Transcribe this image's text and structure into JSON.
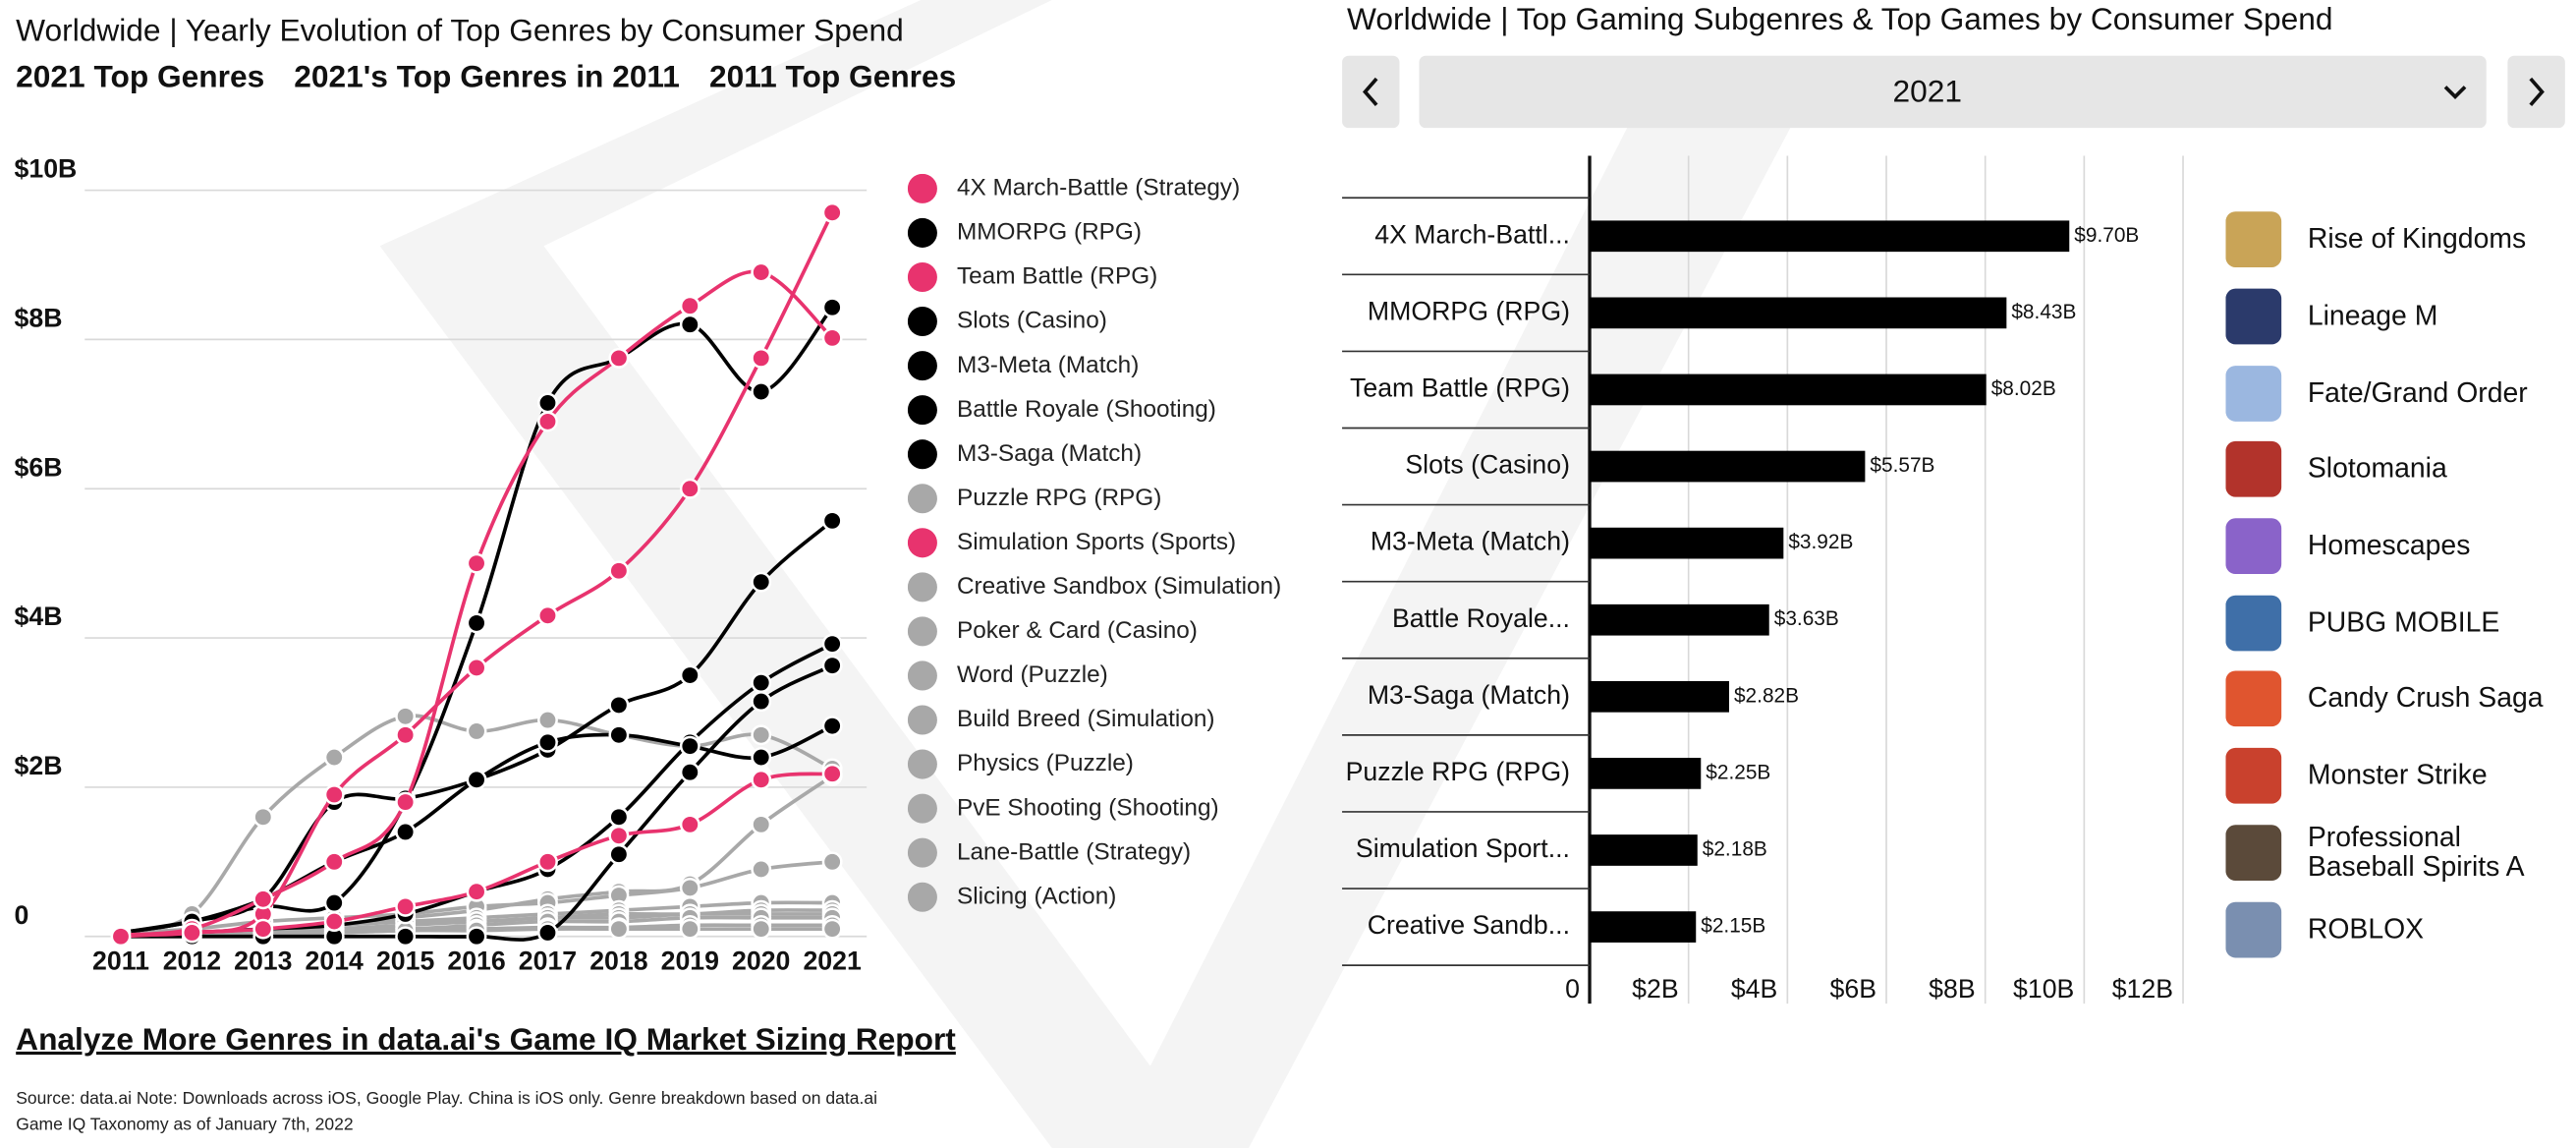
{
  "tabs": [
    "2021 Top Genres",
    "2021's Top Genres in 2011",
    "2011 Top Genres"
  ],
  "tab_colors": [
    "#111111",
    "#e8336e",
    "#a8a8a8"
  ],
  "selector": {
    "value": "2021"
  },
  "top_games": [
    "Rise of Kingdoms",
    "Lineage M",
    "Fate/Grand Order",
    "Slotomania",
    "Homescapes",
    "PUBG MOBILE",
    "Candy Crush Saga",
    "Monster Strike",
    "Professional Baseball Spirits A",
    "ROBLOX"
  ],
  "link": "Analyze More Genres in data.ai's Game IQ Market Sizing Report",
  "source": "Source: data.ai Note: Downloads across iOS, Google Play. China is iOS only. Genre breakdown based on data.ai Game IQ Taxonomy as of January 7th, 2022",
  "chart_data": [
    {
      "type": "line",
      "title": "Worldwide | Yearly Evolution of Top Genres by Consumer Spend",
      "categories": [
        "2011",
        "2012",
        "2013",
        "2014",
        "2015",
        "2016",
        "2017",
        "2018",
        "2019",
        "2020",
        "2021"
      ],
      "ylim": [
        0,
        10
      ],
      "yticks": [
        0,
        {
          "value": 2,
          "label": "$2B"
        },
        {
          "value": 4,
          "label": "$4B"
        },
        {
          "value": 6,
          "label": "$6B"
        },
        {
          "value": 8,
          "label": "$8B"
        },
        {
          "value": 10,
          "label": "$10B"
        }
      ],
      "grid": true,
      "legend": "right",
      "series": [
        {
          "name": "4X March-Battle (Strategy)",
          "color": "#e8336e",
          "values": [
            0.02,
            0.05,
            0.3,
            1.9,
            2.7,
            3.6,
            4.3,
            4.9,
            6.0,
            7.75,
            9.7
          ]
        },
        {
          "name": "MMORPG (RPG)",
          "color": "#000000",
          "values": [
            0.05,
            0.2,
            0.4,
            0.45,
            1.8,
            4.2,
            7.15,
            7.75,
            8.2,
            7.3,
            8.43
          ]
        },
        {
          "name": "Team Battle (RPG)",
          "color": "#e8336e",
          "values": [
            0.02,
            0.1,
            0.5,
            1.0,
            1.8,
            5.0,
            6.9,
            7.75,
            8.45,
            8.9,
            8.02
          ]
        },
        {
          "name": "Slots (Casino)",
          "color": "#000000",
          "values": [
            0.05,
            0.2,
            0.5,
            1.8,
            1.85,
            2.1,
            2.5,
            3.1,
            3.5,
            4.75,
            5.57
          ]
        },
        {
          "name": "M3-Meta (Match)",
          "color": "#000000",
          "values": [
            0.01,
            0.05,
            0.1,
            0.15,
            0.3,
            0.6,
            0.9,
            1.6,
            2.6,
            3.4,
            3.92
          ]
        },
        {
          "name": "Battle Royale (Shooting)",
          "color": "#000000",
          "values": [
            0,
            0,
            0,
            0,
            0,
            0,
            0.05,
            1.1,
            2.2,
            3.15,
            3.63
          ]
        },
        {
          "name": "M3-Saga (Match)",
          "color": "#000000",
          "values": [
            0.05,
            0.2,
            0.5,
            1.0,
            1.4,
            2.1,
            2.6,
            2.7,
            2.55,
            2.4,
            2.82
          ]
        },
        {
          "name": "Puzzle RPG (RPG)",
          "color": "#a8a8a8",
          "values": [
            0.05,
            0.3,
            1.6,
            2.4,
            2.95,
            2.75,
            2.9,
            2.7,
            2.55,
            2.7,
            2.25
          ]
        },
        {
          "name": "Simulation Sports (Sports)",
          "color": "#e8336e",
          "values": [
            0,
            0.05,
            0.1,
            0.2,
            0.4,
            0.6,
            1.0,
            1.35,
            1.5,
            2.1,
            2.18
          ]
        },
        {
          "name": "Creative Sandbox (Simulation)",
          "color": "#a8a8a8",
          "values": [
            0.02,
            0.05,
            0.1,
            0.15,
            0.25,
            0.35,
            0.5,
            0.6,
            0.7,
            1.5,
            2.15
          ]
        },
        {
          "name": "Poker & Card (Casino)",
          "color": "#a8a8a8",
          "values": [
            0.05,
            0.1,
            0.2,
            0.25,
            0.3,
            0.4,
            0.45,
            0.55,
            0.65,
            0.9,
            1.0
          ]
        },
        {
          "name": "Word (Puzzle)",
          "color": "#a8a8a8",
          "values": [
            0.01,
            0.05,
            0.1,
            0.15,
            0.2,
            0.25,
            0.3,
            0.35,
            0.4,
            0.45,
            0.45
          ]
        },
        {
          "name": "Build Breed (Simulation)",
          "color": "#a8a8a8",
          "values": [
            0,
            0.02,
            0.05,
            0.1,
            0.15,
            0.2,
            0.25,
            0.3,
            0.3,
            0.35,
            0.35
          ]
        },
        {
          "name": "Physics (Puzzle)",
          "color": "#a8a8a8",
          "values": [
            0.02,
            0.05,
            0.1,
            0.15,
            0.2,
            0.2,
            0.25,
            0.25,
            0.3,
            0.3,
            0.3
          ]
        },
        {
          "name": "PvE Shooting (Shooting)",
          "color": "#a8a8a8",
          "values": [
            0,
            0.01,
            0.05,
            0.1,
            0.1,
            0.15,
            0.2,
            0.2,
            0.25,
            0.25,
            0.25
          ]
        },
        {
          "name": "Lane-Battle (Strategy)",
          "color": "#a8a8a8",
          "values": [
            0,
            0,
            0.02,
            0.05,
            0.08,
            0.1,
            0.12,
            0.12,
            0.15,
            0.15,
            0.15
          ]
        },
        {
          "name": "Slicing (Action)",
          "color": "#a8a8a8",
          "values": [
            0.01,
            0.02,
            0.05,
            0.05,
            0.08,
            0.08,
            0.1,
            0.1,
            0.1,
            0.1,
            0.1
          ]
        }
      ]
    },
    {
      "type": "bar",
      "orientation": "horizontal",
      "title": "Worldwide | Top Gaming Subgenres & Top Games by Consumer Spend",
      "categories": [
        "4X March-Battl...",
        "MMORPG (RPG)",
        "Team Battle (RPG)",
        "Slots (Casino)",
        "M3-Meta (Match)",
        "Battle Royale...",
        "M3-Saga (Match)",
        "Puzzle RPG (RPG)",
        "Simulation Sport...",
        "Creative Sandb..."
      ],
      "values": [
        9.7,
        8.43,
        8.02,
        5.57,
        3.92,
        3.63,
        2.82,
        2.25,
        2.18,
        2.15
      ],
      "value_labels": [
        "$9.70B",
        "$8.43B",
        "$8.02B",
        "$5.57B",
        "$3.92B",
        "$3.63B",
        "$2.82B",
        "$2.25B",
        "$2.18B",
        "$2.15B"
      ],
      "color": "#000000",
      "xlim": [
        0,
        12
      ],
      "xticks": [
        0,
        {
          "value": 2,
          "label": "$2B"
        },
        {
          "value": 4,
          "label": "$4B"
        },
        {
          "value": 6,
          "label": "$6B"
        },
        {
          "value": 8,
          "label": "$8B"
        },
        {
          "value": 10,
          "label": "$10B"
        },
        {
          "value": 12,
          "label": "$12B"
        }
      ],
      "grid": true
    }
  ]
}
